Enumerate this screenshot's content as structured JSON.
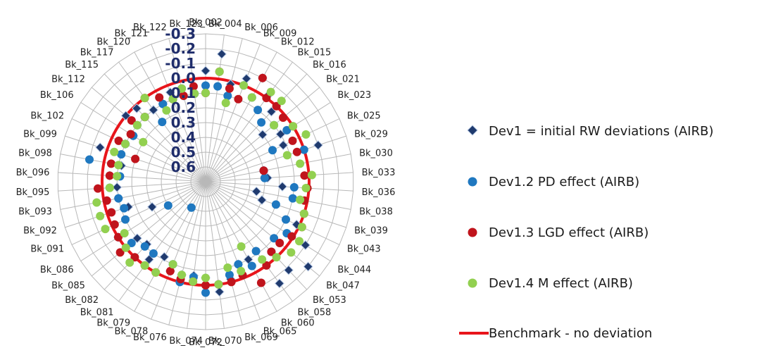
{
  "chart_data": {
    "type": "radar",
    "categories": [
      "Bk_002",
      "Bk_004",
      "Bk_006",
      "Bk_009",
      "Bk_012",
      "Bk_015",
      "Bk_016",
      "Bk_021",
      "Bk_023",
      "Bk_025",
      "Bk_029",
      "Bk_030",
      "Bk_033",
      "Bk_036",
      "Bk_038",
      "Bk_039",
      "Bk_043",
      "Bk_044",
      "Bk_047",
      "Bk_053",
      "Bk_058",
      "Bk_060",
      "Bk_065",
      "Bk_069",
      "Bk_070",
      "Bk_072",
      "Bk_074",
      "Bk_076",
      "Bk_078",
      "Bk_079",
      "Bk_081",
      "Bk_082",
      "Bk_085",
      "Bk_086",
      "Bk_091",
      "Bk_092",
      "Bk_093",
      "Bk_095",
      "Bk_096",
      "Bk_098",
      "Bk_099",
      "Bk_102",
      "Bk_106",
      "Bk_112",
      "Bk_115",
      "Bk_117",
      "Bk_120",
      "Bk_121",
      "Bk_122",
      "Bk_123"
    ],
    "axis_ticks": [
      "-0.3",
      "-0.2",
      "-0.1",
      "0.0",
      "0.1",
      "0.2",
      "0.3",
      "0.4",
      "0.5",
      "0.6"
    ],
    "rlim": [
      0.7,
      -0.3
    ],
    "series": [
      {
        "name": "Dev1 = initial RW deviations (AIRB)",
        "marker": "diamond",
        "color": "#1f3a6e",
        "values": [
          -0.05,
          -0.17,
          0.02,
          -0.05,
          -0.1,
          -0.03,
          0.05,
          0.2,
          0.1,
          0.12,
          -0.1,
          0.3,
          0.28,
          0.18,
          0.35,
          0.3,
          0.02,
          -0.1,
          -0.2,
          -0.12,
          -0.15,
          0.1,
          0.1,
          0.02,
          -0.05,
          0.05,
          0.06,
          0.05,
          0.05,
          0.12,
          0.05,
          0.12,
          0.1,
          0.0,
          0.3,
          0.15,
          0.1,
          0.1,
          0.05,
          0.12,
          -0.05,
          0.1,
          0.12,
          0.0,
          0.02,
          0.1,
          0.1,
          0.05,
          0.1,
          0.1
        ]
      },
      {
        "name": "Dev1.2 PD effect (AIRB)",
        "marker": "circle",
        "color": "#1f78c0",
        "values": [
          0.05,
          0.05,
          0.1,
          0.0,
          0.05,
          0.1,
          0.15,
          0.1,
          0.05,
          0.2,
          0.0,
          0.3,
          0.3,
          0.1,
          0.1,
          0.2,
          0.1,
          0.05,
          0.1,
          0.05,
          0.12,
          0.05,
          0.1,
          0.05,
          0.0,
          -0.05,
          0.05,
          0.0,
          0.1,
          0.5,
          0.1,
          0.1,
          0.05,
          0.4,
          0.1,
          0.12,
          0.1,
          0.05,
          0.12,
          -0.1,
          0.1,
          0.1,
          0.12,
          0.1,
          0.1,
          0.2,
          0.1,
          0.1,
          0.05,
          0.1
        ]
      },
      {
        "name": "Dev1.3 LGD effect (AIRB)",
        "marker": "circle",
        "color": "#c0141c",
        "values": [
          0.1,
          -0.05,
          0.05,
          0.1,
          -0.1,
          0.0,
          0.0,
          0.02,
          0.0,
          0.05,
          0.05,
          0.3,
          0.03,
          0.01,
          0.02,
          0.0,
          -0.02,
          0.01,
          0.05,
          0.05,
          0.0,
          -0.08,
          0.02,
          0.0,
          0.0,
          0.0,
          0.02,
          0.02,
          0.05,
          0.0,
          0.0,
          0.0,
          -0.05,
          0.0,
          0.02,
          0.03,
          0.02,
          -0.03,
          0.05,
          0.05,
          0.2,
          0.05,
          0.1,
          0.05,
          0.1,
          0.0,
          0.05,
          0.1,
          0.1,
          0.05
        ]
      },
      {
        "name": "Dev1.4 M effect (AIRB)",
        "marker": "circle",
        "color": "#92d050",
        "values": [
          0.1,
          -0.05,
          0.15,
          0.0,
          0.05,
          -0.05,
          -0.05,
          0.1,
          0.0,
          -0.05,
          0.12,
          0.05,
          -0.02,
          0.02,
          0.05,
          0.0,
          -0.02,
          -0.05,
          -0.05,
          0.0,
          0.05,
          0.2,
          0.05,
          0.1,
          0.0,
          0.05,
          0.02,
          0.05,
          0.1,
          0.0,
          0.0,
          -0.05,
          0.0,
          0.05,
          -0.05,
          -0.05,
          -0.05,
          0.05,
          0.1,
          0.1,
          0.05,
          0.1,
          0.2,
          0.1,
          0.1,
          0.0,
          0.15,
          0.1,
          0.05,
          0.1
        ]
      }
    ],
    "benchmark": {
      "name": "Benchmark - no deviation",
      "value": 0.0,
      "color": "#e8151b"
    },
    "legend_position": "right"
  }
}
